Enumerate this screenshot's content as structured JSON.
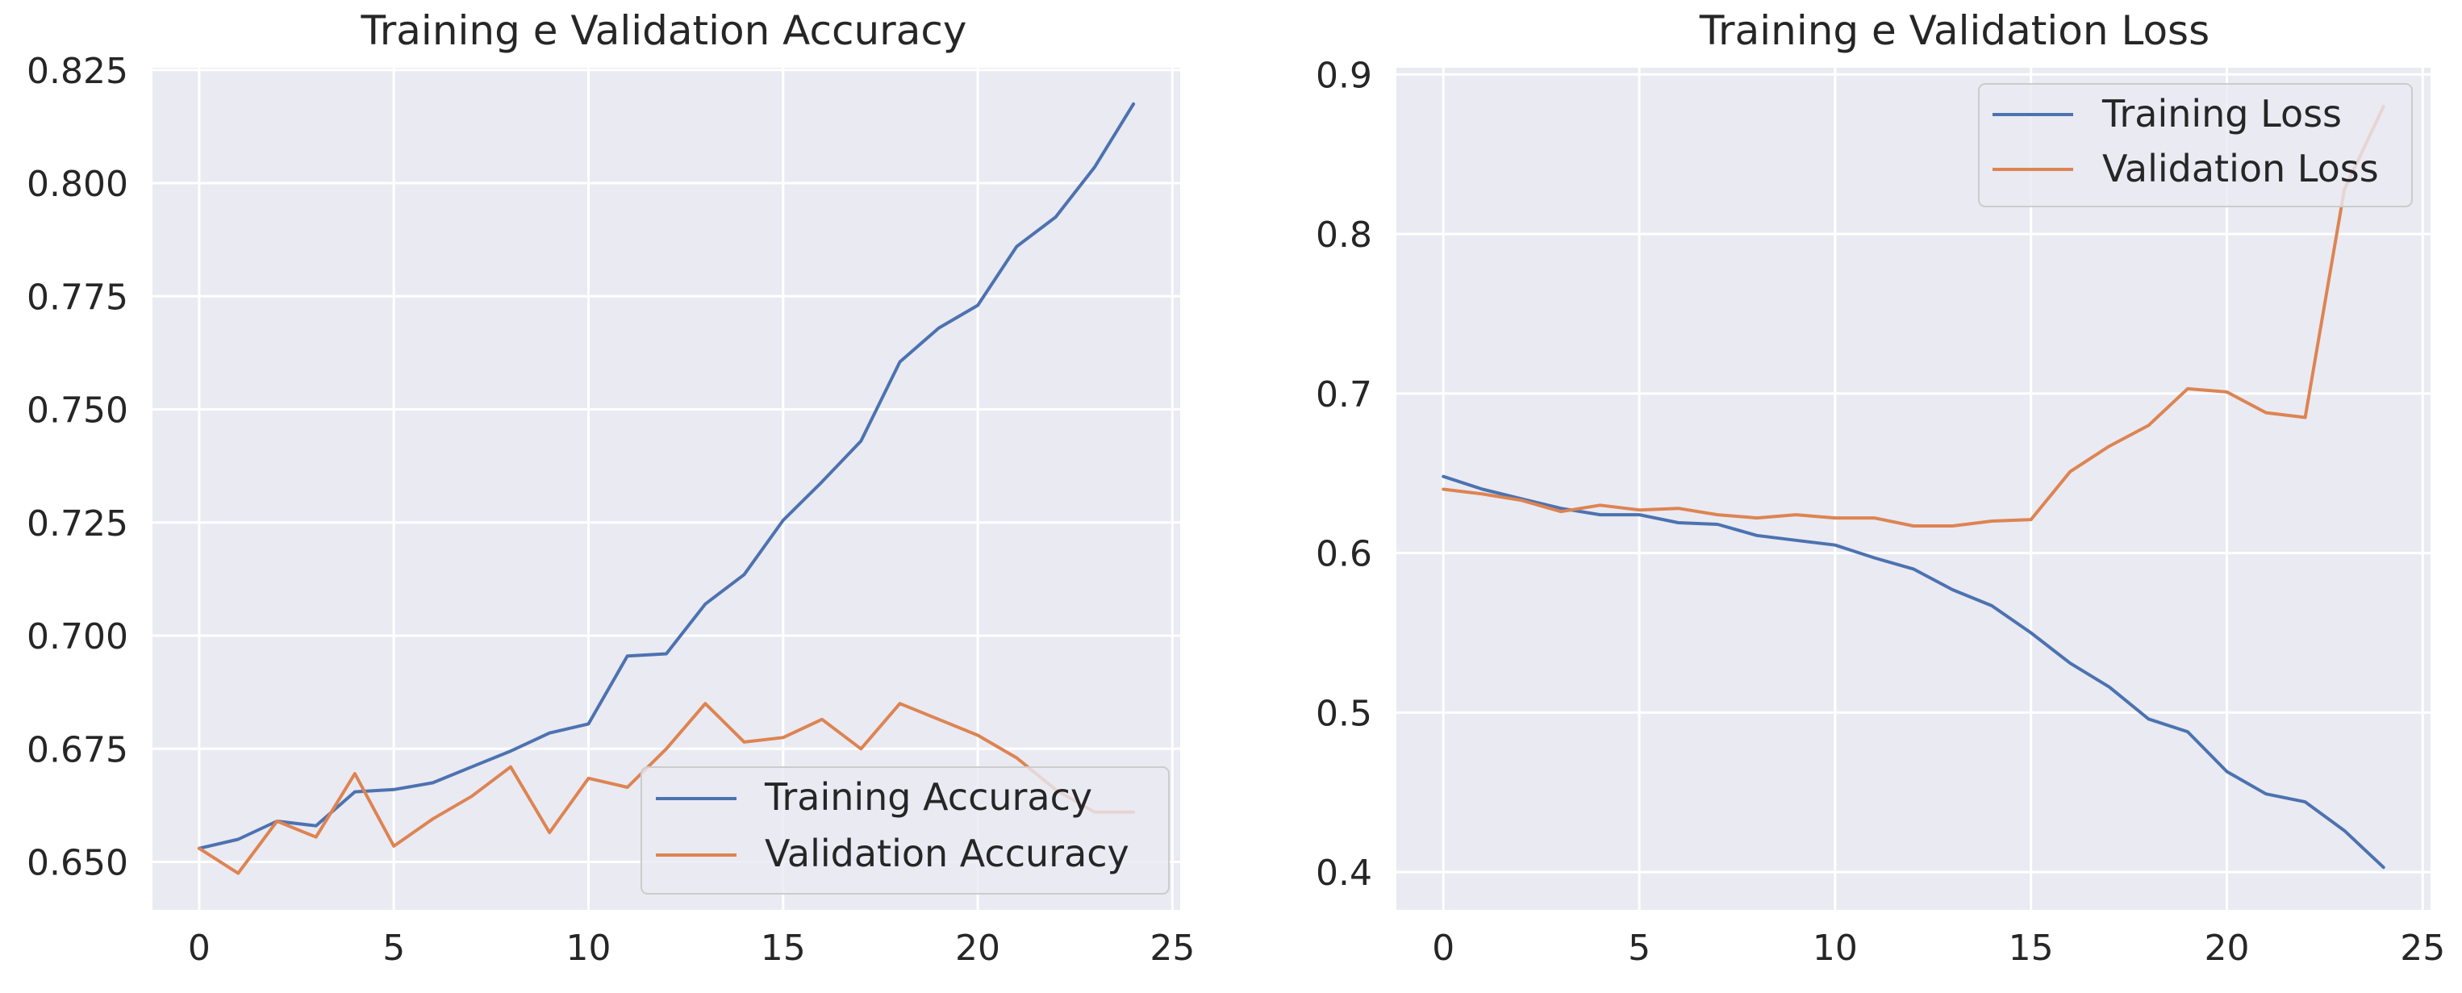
{
  "chart_data": [
    {
      "type": "line",
      "title": "Training e Validation Accuracy",
      "xlabel": "",
      "ylabel": "",
      "xlim": [
        -1.2,
        25.2
      ],
      "ylim": [
        0.6394,
        0.8255
      ],
      "xticks": [
        0,
        5,
        10,
        15,
        20,
        25
      ],
      "xtick_labels": [
        "0",
        "5",
        "10",
        "15",
        "20",
        "25"
      ],
      "yticks": [
        0.65,
        0.675,
        0.7,
        0.725,
        0.75,
        0.775,
        0.8,
        0.825
      ],
      "ytick_labels": [
        "0.650",
        "0.675",
        "0.700",
        "0.725",
        "0.750",
        "0.775",
        "0.800",
        "0.825"
      ],
      "grid": true,
      "legend_position": "lower-right",
      "x": [
        0,
        1,
        2,
        3,
        4,
        5,
        6,
        7,
        8,
        9,
        10,
        11,
        12,
        13,
        14,
        15,
        16,
        17,
        18,
        19,
        20,
        21,
        22,
        23,
        24
      ],
      "series": [
        {
          "name": "Training Accuracy",
          "color": "#4c72b0",
          "values": [
            0.653,
            0.655,
            0.659,
            0.658,
            0.6655,
            0.666,
            0.6675,
            0.671,
            0.6745,
            0.6785,
            0.6805,
            0.6955,
            0.696,
            0.707,
            0.7135,
            0.7255,
            0.734,
            0.743,
            0.7605,
            0.768,
            0.773,
            0.786,
            0.7925,
            0.8035,
            0.8175
          ]
        },
        {
          "name": "Validation Accuracy",
          "color": "#dd8452",
          "values": [
            0.653,
            0.6475,
            0.659,
            0.6555,
            0.6695,
            0.6535,
            0.6595,
            0.6645,
            0.671,
            0.6565,
            0.6685,
            0.6665,
            0.675,
            0.685,
            0.6765,
            0.6775,
            0.6815,
            0.675,
            0.685,
            0.6815,
            0.678,
            0.673,
            0.666,
            0.661,
            0.661
          ]
        }
      ]
    },
    {
      "type": "line",
      "title": "Training e Validation Loss",
      "xlabel": "",
      "ylabel": "",
      "xlim": [
        -1.2,
        25.2
      ],
      "ylim": [
        0.3763,
        0.9042
      ],
      "xticks": [
        0,
        5,
        10,
        15,
        20,
        25
      ],
      "xtick_labels": [
        "0",
        "5",
        "10",
        "15",
        "20",
        "25"
      ],
      "yticks": [
        0.4,
        0.5,
        0.6,
        0.7,
        0.8,
        0.9
      ],
      "ytick_labels": [
        "0.4",
        "0.5",
        "0.6",
        "0.7",
        "0.8",
        "0.9"
      ],
      "grid": true,
      "legend_position": "upper-right",
      "x": [
        0,
        1,
        2,
        3,
        4,
        5,
        6,
        7,
        8,
        9,
        10,
        11,
        12,
        13,
        14,
        15,
        16,
        17,
        18,
        19,
        20,
        21,
        22,
        23,
        24
      ],
      "series": [
        {
          "name": "Training Loss",
          "color": "#4c72b0",
          "values": [
            0.648,
            0.64,
            0.634,
            0.628,
            0.624,
            0.624,
            0.619,
            0.618,
            0.611,
            0.608,
            0.605,
            0.597,
            0.59,
            0.577,
            0.567,
            0.55,
            0.531,
            0.516,
            0.496,
            0.488,
            0.463,
            0.449,
            0.444,
            0.426,
            0.403
          ]
        },
        {
          "name": "Validation Loss",
          "color": "#dd8452",
          "values": [
            0.64,
            0.637,
            0.633,
            0.626,
            0.63,
            0.627,
            0.628,
            0.624,
            0.622,
            0.624,
            0.622,
            0.622,
            0.617,
            0.617,
            0.62,
            0.621,
            0.651,
            0.667,
            0.68,
            0.703,
            0.701,
            0.688,
            0.685,
            0.828,
            0.88
          ]
        }
      ]
    }
  ]
}
